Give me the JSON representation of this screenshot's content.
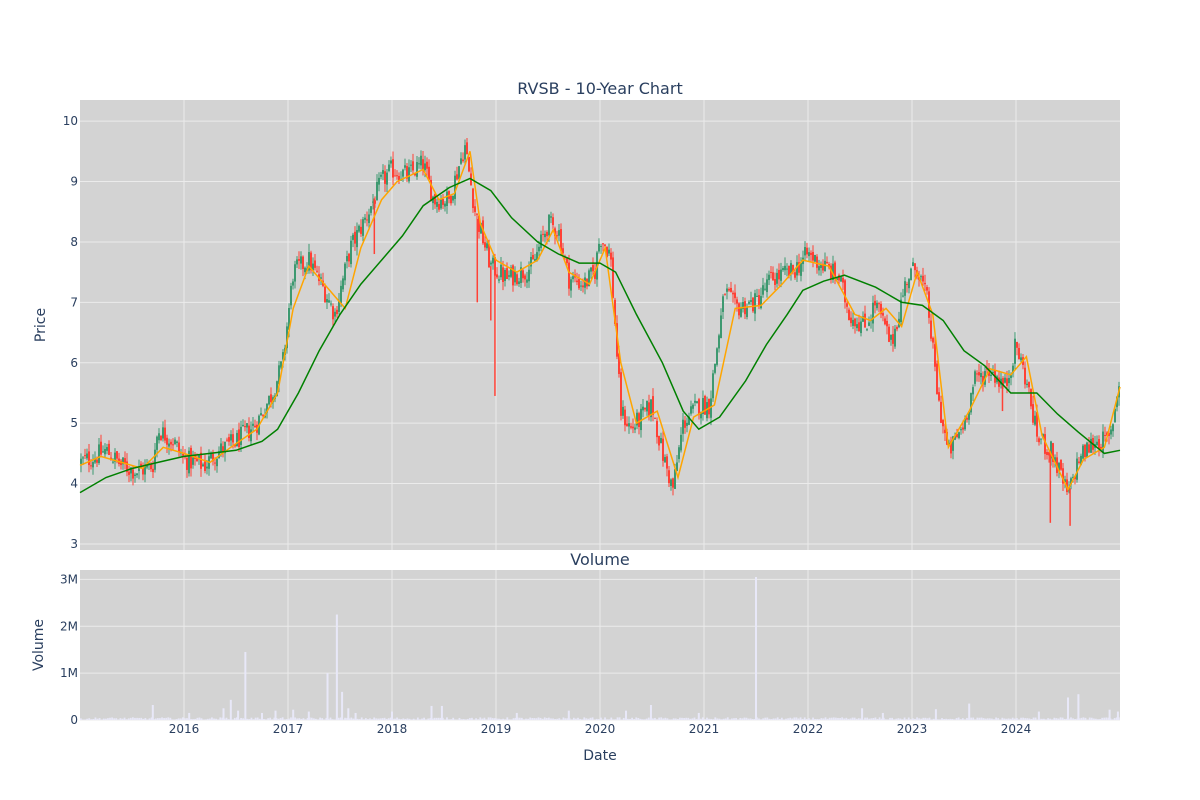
{
  "chart_data": [
    {
      "type": "candlestick",
      "title": "RVSB - 10-Year Chart",
      "xlabel": "",
      "ylabel": "Price",
      "ylim": [
        2.9,
        10.35
      ],
      "yticks": [
        3,
        4,
        5,
        6,
        7,
        8,
        9,
        10
      ],
      "xlim": [
        2015.0,
        2025.0
      ],
      "xticks": [
        "2016",
        "2017",
        "2018",
        "2019",
        "2020",
        "2021",
        "2022",
        "2023",
        "2024"
      ],
      "grid": true,
      "legend": "none",
      "colors": {
        "up": "#3d9970",
        "down": "#ff4136",
        "ma_short": "#ffa500",
        "ma_long": "#008000",
        "plot_bg": "#d3d3d3",
        "grid": "#ebebeb"
      },
      "price_path": [
        [
          2015.0,
          4.35
        ],
        [
          2015.15,
          4.45
        ],
        [
          2015.25,
          4.55
        ],
        [
          2015.4,
          4.3
        ],
        [
          2015.55,
          4.2
        ],
        [
          2015.7,
          4.3
        ],
        [
          2015.75,
          4.9
        ],
        [
          2015.9,
          4.7
        ],
        [
          2016.0,
          4.4
        ],
        [
          2016.2,
          4.3
        ],
        [
          2016.3,
          4.5
        ],
        [
          2016.5,
          4.7
        ],
        [
          2016.7,
          5.0
        ],
        [
          2016.85,
          5.5
        ],
        [
          2016.95,
          6.0
        ],
        [
          2017.05,
          7.5
        ],
        [
          2017.2,
          7.7
        ],
        [
          2017.35,
          7.2
        ],
        [
          2017.45,
          6.8
        ],
        [
          2017.6,
          7.9
        ],
        [
          2017.75,
          8.4
        ],
        [
          2017.9,
          9.0
        ],
        [
          2018.0,
          9.2
        ],
        [
          2018.15,
          9.1
        ],
        [
          2018.3,
          9.3
        ],
        [
          2018.4,
          8.7
        ],
        [
          2018.55,
          8.7
        ],
        [
          2018.7,
          9.6
        ],
        [
          2018.8,
          8.5
        ],
        [
          2018.95,
          7.6
        ],
        [
          2019.1,
          7.4
        ],
        [
          2019.25,
          7.5
        ],
        [
          2019.35,
          7.6
        ],
        [
          2019.5,
          8.3
        ],
        [
          2019.6,
          8.2
        ],
        [
          2019.7,
          7.4
        ],
        [
          2019.85,
          7.3
        ],
        [
          2019.95,
          7.5
        ],
        [
          2020.0,
          8.1
        ],
        [
          2020.1,
          7.8
        ],
        [
          2020.2,
          5.2
        ],
        [
          2020.3,
          4.9
        ],
        [
          2020.5,
          5.3
        ],
        [
          2020.6,
          4.5
        ],
        [
          2020.7,
          3.9
        ],
        [
          2020.8,
          5.0
        ],
        [
          2020.95,
          5.3
        ],
        [
          2021.05,
          5.3
        ],
        [
          2021.2,
          7.2
        ],
        [
          2021.3,
          6.9
        ],
        [
          2021.5,
          7.0
        ],
        [
          2021.65,
          7.4
        ],
        [
          2021.85,
          7.5
        ],
        [
          2022.0,
          7.8
        ],
        [
          2022.15,
          7.6
        ],
        [
          2022.3,
          7.4
        ],
        [
          2022.4,
          6.8
        ],
        [
          2022.55,
          6.6
        ],
        [
          2022.65,
          7.0
        ],
        [
          2022.8,
          6.3
        ],
        [
          2022.95,
          7.4
        ],
        [
          2023.05,
          7.6
        ],
        [
          2023.15,
          7.0
        ],
        [
          2023.25,
          5.4
        ],
        [
          2023.35,
          4.5
        ],
        [
          2023.5,
          5.0
        ],
        [
          2023.6,
          5.7
        ],
        [
          2023.75,
          5.9
        ],
        [
          2023.9,
          5.6
        ],
        [
          2024.0,
          6.3
        ],
        [
          2024.1,
          5.7
        ],
        [
          2024.2,
          4.8
        ],
        [
          2024.35,
          4.5
        ],
        [
          2024.5,
          3.8
        ],
        [
          2024.6,
          4.4
        ],
        [
          2024.75,
          4.7
        ],
        [
          2024.9,
          4.7
        ],
        [
          2025.0,
          5.8
        ]
      ],
      "ma_short_path": [
        [
          2015.0,
          4.3
        ],
        [
          2015.2,
          4.45
        ],
        [
          2015.4,
          4.35
        ],
        [
          2015.6,
          4.25
        ],
        [
          2015.8,
          4.6
        ],
        [
          2016.0,
          4.5
        ],
        [
          2016.25,
          4.35
        ],
        [
          2016.45,
          4.6
        ],
        [
          2016.7,
          4.9
        ],
        [
          2016.9,
          5.5
        ],
        [
          2017.05,
          6.9
        ],
        [
          2017.2,
          7.6
        ],
        [
          2017.4,
          7.2
        ],
        [
          2017.55,
          6.9
        ],
        [
          2017.7,
          7.9
        ],
        [
          2017.9,
          8.7
        ],
        [
          2018.05,
          9.0
        ],
        [
          2018.3,
          9.2
        ],
        [
          2018.45,
          8.7
        ],
        [
          2018.6,
          8.8
        ],
        [
          2018.75,
          9.5
        ],
        [
          2018.85,
          8.3
        ],
        [
          2019.0,
          7.7
        ],
        [
          2019.2,
          7.5
        ],
        [
          2019.4,
          7.7
        ],
        [
          2019.55,
          8.2
        ],
        [
          2019.7,
          7.5
        ],
        [
          2019.9,
          7.3
        ],
        [
          2020.05,
          7.9
        ],
        [
          2020.2,
          6.0
        ],
        [
          2020.35,
          5.0
        ],
        [
          2020.55,
          5.2
        ],
        [
          2020.75,
          4.1
        ],
        [
          2020.9,
          5.1
        ],
        [
          2021.1,
          5.3
        ],
        [
          2021.3,
          6.9
        ],
        [
          2021.55,
          6.95
        ],
        [
          2021.75,
          7.3
        ],
        [
          2021.95,
          7.7
        ],
        [
          2022.2,
          7.6
        ],
        [
          2022.45,
          6.8
        ],
        [
          2022.6,
          6.7
        ],
        [
          2022.75,
          6.9
        ],
        [
          2022.9,
          6.6
        ],
        [
          2023.05,
          7.5
        ],
        [
          2023.2,
          6.8
        ],
        [
          2023.35,
          4.6
        ],
        [
          2023.55,
          5.2
        ],
        [
          2023.75,
          5.9
        ],
        [
          2023.95,
          5.8
        ],
        [
          2024.1,
          6.1
        ],
        [
          2024.25,
          4.8
        ],
        [
          2024.5,
          3.9
        ],
        [
          2024.65,
          4.4
        ],
        [
          2024.85,
          4.6
        ],
        [
          2025.0,
          5.6
        ]
      ],
      "ma_long_path": [
        [
          2015.0,
          3.85
        ],
        [
          2015.25,
          4.1
        ],
        [
          2015.5,
          4.25
        ],
        [
          2015.75,
          4.35
        ],
        [
          2016.0,
          4.45
        ],
        [
          2016.25,
          4.5
        ],
        [
          2016.5,
          4.55
        ],
        [
          2016.75,
          4.7
        ],
        [
          2016.9,
          4.9
        ],
        [
          2017.1,
          5.5
        ],
        [
          2017.3,
          6.2
        ],
        [
          2017.5,
          6.8
        ],
        [
          2017.7,
          7.3
        ],
        [
          2017.9,
          7.7
        ],
        [
          2018.1,
          8.1
        ],
        [
          2018.3,
          8.6
        ],
        [
          2018.55,
          8.9
        ],
        [
          2018.75,
          9.05
        ],
        [
          2018.95,
          8.85
        ],
        [
          2019.15,
          8.4
        ],
        [
          2019.4,
          8.0
        ],
        [
          2019.6,
          7.8
        ],
        [
          2019.8,
          7.65
        ],
        [
          2020.0,
          7.65
        ],
        [
          2020.15,
          7.5
        ],
        [
          2020.35,
          6.8
        ],
        [
          2020.6,
          6.0
        ],
        [
          2020.8,
          5.2
        ],
        [
          2020.95,
          4.9
        ],
        [
          2021.15,
          5.1
        ],
        [
          2021.4,
          5.7
        ],
        [
          2021.6,
          6.3
        ],
        [
          2021.8,
          6.8
        ],
        [
          2021.95,
          7.2
        ],
        [
          2022.15,
          7.35
        ],
        [
          2022.35,
          7.45
        ],
        [
          2022.65,
          7.25
        ],
        [
          2022.9,
          7.0
        ],
        [
          2023.1,
          6.95
        ],
        [
          2023.3,
          6.7
        ],
        [
          2023.5,
          6.2
        ],
        [
          2023.7,
          5.95
        ],
        [
          2023.95,
          5.5
        ],
        [
          2024.2,
          5.5
        ],
        [
          2024.4,
          5.15
        ],
        [
          2024.6,
          4.85
        ],
        [
          2024.85,
          4.5
        ],
        [
          2025.0,
          4.55
        ]
      ],
      "spikes": [
        {
          "x": 2017.83,
          "low": 7.8
        },
        {
          "x": 2018.82,
          "low": 7.0
        },
        {
          "x": 2018.95,
          "low": 6.7
        },
        {
          "x": 2018.99,
          "low": 5.45
        },
        {
          "x": 2023.87,
          "low": 5.2
        },
        {
          "x": 2024.33,
          "low": 3.35
        },
        {
          "x": 2024.52,
          "low": 3.3
        }
      ]
    },
    {
      "type": "bar",
      "title": "Volume",
      "xlabel": "Date",
      "ylabel": "Volume",
      "ylim": [
        0,
        3200000
      ],
      "yticks": [
        {
          "v": 0,
          "label": "0"
        },
        {
          "v": 1000000,
          "label": "1M"
        },
        {
          "v": 2000000,
          "label": "2M"
        },
        {
          "v": 3000000,
          "label": "3M"
        }
      ],
      "xlim": [
        2015.0,
        2025.0
      ],
      "xticks": [
        "2016",
        "2017",
        "2018",
        "2019",
        "2020",
        "2021",
        "2022",
        "2023",
        "2024"
      ],
      "grid": true,
      "colors": {
        "bar": "#e8e8f8",
        "plot_bg": "#d3d3d3",
        "grid": "#ebebeb"
      },
      "base_level": 30000,
      "spikes": [
        [
          2015.7,
          320000
        ],
        [
          2016.05,
          150000
        ],
        [
          2016.38,
          250000
        ],
        [
          2016.45,
          430000
        ],
        [
          2016.52,
          200000
        ],
        [
          2016.59,
          1450000
        ],
        [
          2016.75,
          150000
        ],
        [
          2016.88,
          200000
        ],
        [
          2017.05,
          220000
        ],
        [
          2017.2,
          180000
        ],
        [
          2017.38,
          1000000
        ],
        [
          2017.47,
          2250000
        ],
        [
          2017.52,
          600000
        ],
        [
          2017.58,
          250000
        ],
        [
          2017.65,
          150000
        ],
        [
          2018.0,
          180000
        ],
        [
          2018.38,
          300000
        ],
        [
          2018.48,
          300000
        ],
        [
          2019.2,
          150000
        ],
        [
          2019.7,
          200000
        ],
        [
          2020.25,
          200000
        ],
        [
          2020.49,
          320000
        ],
        [
          2020.95,
          150000
        ],
        [
          2021.5,
          3050000
        ],
        [
          2022.52,
          250000
        ],
        [
          2022.72,
          150000
        ],
        [
          2023.23,
          230000
        ],
        [
          2023.55,
          350000
        ],
        [
          2024.22,
          180000
        ],
        [
          2024.5,
          480000
        ],
        [
          2024.6,
          550000
        ],
        [
          2024.9,
          220000
        ],
        [
          2024.98,
          180000
        ]
      ]
    }
  ]
}
